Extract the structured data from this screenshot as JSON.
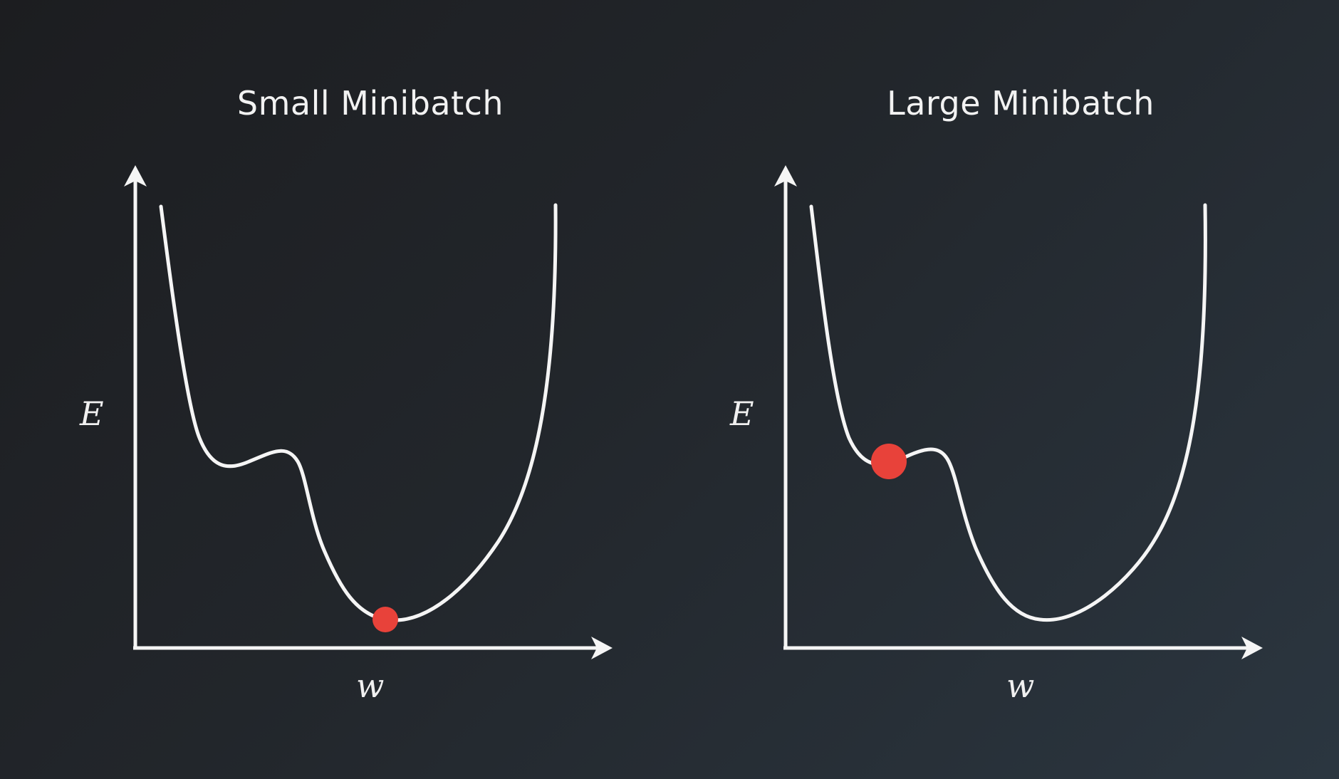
{
  "panels": [
    {
      "title": "Small Minibatch",
      "ylabel": "E",
      "xlabel": "w",
      "ball_position": "global minimum",
      "ball_size": "small"
    },
    {
      "title": "Large Minibatch",
      "ylabel": "E",
      "xlabel": "w",
      "ball_position": "local minimum",
      "ball_size": "large"
    }
  ],
  "colors": {
    "background": "#222529",
    "curve": "#f5f5f5",
    "axis": "#f5f5f5",
    "ball": "#e8423a",
    "text": "#f2f2f2"
  }
}
